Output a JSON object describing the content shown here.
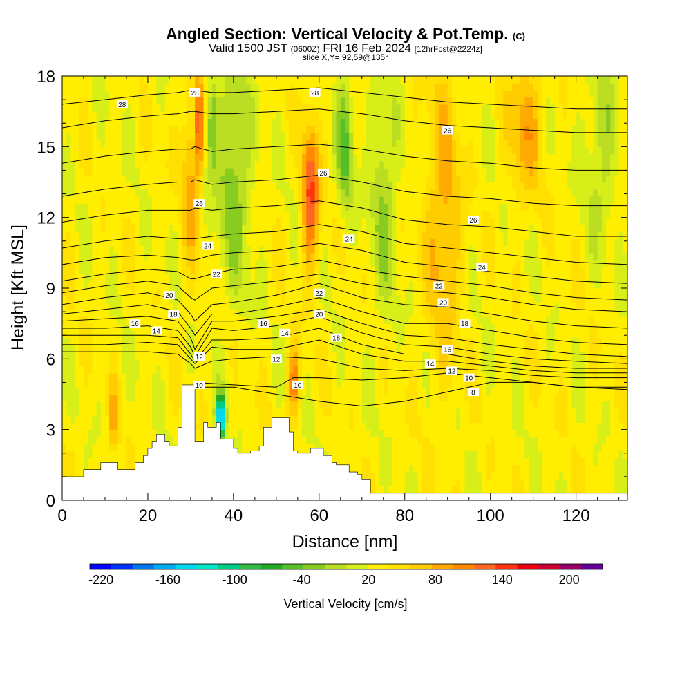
{
  "header": {
    "title": "Angled Section: Vertical Velocity & Pot.Temp.",
    "title_suffix": "(C)",
    "valid_prefix": "Valid 1500 JST",
    "valid_utc": "(0600Z)",
    "valid_date": "FRI 16 Feb 2024",
    "forecast_info": "[12hrFcst@2224z]",
    "slice_info": "slice X,Y= 92,59@135°"
  },
  "chart_data": {
    "type": "heatmap",
    "xlabel": "Distance [nm]",
    "ylabel": "Height [Kft MSL]",
    "xlim": [
      0,
      132
    ],
    "ylim": [
      0,
      18
    ],
    "xticks": [
      0,
      20,
      40,
      60,
      80,
      100,
      120
    ],
    "yticks": [
      0,
      3,
      6,
      9,
      12,
      15,
      18
    ],
    "colorbar": {
      "label": "Vertical Velocity [cm/s]",
      "min": -230,
      "max": 230,
      "tick_labels": [
        -220,
        -160,
        -100,
        -40,
        20,
        80,
        140,
        200
      ],
      "colors": [
        "#0000ff",
        "#0033ff",
        "#0077ee",
        "#00aaf0",
        "#00d8ee",
        "#00e6c8",
        "#00cc88",
        "#33bb44",
        "#22aa22",
        "#55c026",
        "#88cc22",
        "#bbdd22",
        "#d8ee18",
        "#ffee00",
        "#ffe000",
        "#ffcc00",
        "#ffaa00",
        "#ff8800",
        "#ff6622",
        "#ff3311",
        "#ee0011",
        "#cc0033",
        "#990066",
        "#660099"
      ]
    },
    "velocity_field": [
      {
        "x": 12,
        "z": 3.5,
        "v": 60,
        "spread_x": 1,
        "spread_z": 1.5
      },
      {
        "x": 30,
        "z": 14,
        "v": 60,
        "spread_x": 2,
        "spread_z": 4
      },
      {
        "x": 32,
        "z": 16,
        "v": 140,
        "spread_x": 0.6,
        "spread_z": 2
      },
      {
        "x": 35,
        "z": 16,
        "v": -60,
        "spread_x": 1.2,
        "spread_z": 2
      },
      {
        "x": 37,
        "z": 3.5,
        "v": -200,
        "spread_x": 1,
        "spread_z": 1
      },
      {
        "x": 40,
        "z": 14,
        "v": -60,
        "spread_x": 4,
        "spread_z": 5
      },
      {
        "x": 54,
        "z": 5,
        "v": 80,
        "spread_x": 1.5,
        "spread_z": 1.5
      },
      {
        "x": 58,
        "z": 13,
        "v": 110,
        "spread_x": 2,
        "spread_z": 3
      },
      {
        "x": 66,
        "z": 15,
        "v": -70,
        "spread_x": 2,
        "spread_z": 3
      },
      {
        "x": 75,
        "z": 13,
        "v": -50,
        "spread_x": 3,
        "spread_z": 5
      },
      {
        "x": 89,
        "z": 12,
        "v": 60,
        "spread_x": 4,
        "spread_z": 6
      },
      {
        "x": 108,
        "z": 16,
        "v": 60,
        "spread_x": 4,
        "spread_z": 3
      },
      {
        "x": 126,
        "z": 15,
        "v": -40,
        "spread_x": 4,
        "spread_z": 4
      }
    ],
    "terrain": {
      "x": [
        0,
        4,
        5,
        8,
        9,
        12,
        13,
        16,
        17,
        19,
        20,
        21,
        22,
        24,
        25,
        27,
        28,
        29,
        30,
        31,
        33,
        34,
        36,
        37,
        40,
        41,
        43,
        44,
        46,
        47,
        49,
        50,
        53,
        54,
        55,
        57,
        58,
        60,
        61,
        63,
        64,
        66,
        67,
        69,
        70,
        72,
        80,
        100,
        132
      ],
      "z": [
        1.0,
        1.0,
        1.3,
        1.3,
        1.6,
        1.6,
        1.3,
        1.3,
        1.6,
        1.9,
        2.2,
        2.5,
        2.8,
        2.5,
        2.3,
        3.1,
        4.9,
        4.9,
        4.9,
        2.5,
        3.3,
        3.1,
        3.3,
        2.6,
        2.2,
        2.0,
        2.0,
        2.1,
        2.3,
        3.1,
        3.5,
        3.5,
        2.9,
        2.1,
        2.0,
        2.0,
        2.2,
        2.2,
        1.9,
        1.6,
        1.5,
        1.5,
        1.2,
        1.1,
        0.9,
        0.3,
        0.3,
        0.3,
        0.3
      ]
    },
    "isentropes": [
      {
        "label": "8",
        "x": [
          30,
          40,
          50,
          60,
          70,
          80,
          90,
          100,
          110,
          120,
          132
        ],
        "z": [
          4.8,
          4.8,
          4.5,
          4.2,
          4.0,
          4.2,
          4.6,
          5.0,
          5.0,
          4.8,
          4.7
        ]
      },
      {
        "label": "10",
        "x": [
          31,
          40,
          50,
          54,
          60,
          70,
          80,
          90,
          100,
          110,
          120,
          132
        ],
        "z": [
          5.0,
          4.9,
          4.8,
          5.2,
          5.2,
          5.1,
          5.2,
          5.4,
          5.2,
          5.0,
          4.8,
          4.8
        ]
      },
      {
        "label": "12",
        "x": [
          0,
          10,
          20,
          27,
          30,
          31,
          35,
          40,
          50,
          60,
          70,
          80,
          90,
          100,
          110,
          120,
          132
        ],
        "z": [
          6.3,
          6.3,
          6.3,
          6.2,
          5.8,
          5.6,
          5.9,
          6.0,
          6.1,
          6.0,
          5.6,
          5.5,
          5.6,
          5.5,
          5.3,
          5.2,
          5.2
        ]
      },
      {
        "label": "14",
        "x": [
          0,
          10,
          20,
          27,
          30,
          31,
          35,
          40,
          50,
          60,
          70,
          80,
          90,
          100,
          110,
          120,
          132
        ],
        "z": [
          6.6,
          6.6,
          6.7,
          6.6,
          6.0,
          5.8,
          6.5,
          6.4,
          6.4,
          6.8,
          6.2,
          5.9,
          5.9,
          5.7,
          5.5,
          5.4,
          5.4
        ]
      },
      {
        "label": "",
        "x": [
          0,
          10,
          20,
          27,
          30,
          31,
          35,
          40,
          50,
          60,
          70,
          80,
          90,
          100,
          110,
          120,
          132
        ],
        "z": [
          7.0,
          7.0,
          7.0,
          6.9,
          6.2,
          5.9,
          6.8,
          6.8,
          6.9,
          7.3,
          6.6,
          6.2,
          6.2,
          5.9,
          5.7,
          5.6,
          5.6
        ]
      },
      {
        "label": "16",
        "x": [
          0,
          10,
          20,
          27,
          30,
          31,
          35,
          40,
          50,
          60,
          70,
          80,
          90,
          100,
          110,
          120,
          132
        ],
        "z": [
          7.3,
          7.3,
          7.4,
          7.2,
          6.5,
          6.1,
          7.3,
          7.2,
          7.4,
          7.8,
          7.1,
          6.6,
          6.5,
          6.2,
          6.0,
          5.9,
          5.8
        ]
      },
      {
        "label": "",
        "x": [
          0,
          10,
          20,
          27,
          30,
          31,
          35,
          40,
          50,
          60,
          70,
          80,
          90,
          100,
          110,
          120,
          132
        ],
        "z": [
          7.6,
          7.7,
          7.8,
          7.6,
          6.9,
          6.4,
          7.6,
          7.6,
          7.8,
          8.1,
          7.5,
          7.0,
          6.9,
          6.6,
          6.4,
          6.2,
          6.1
        ]
      },
      {
        "label": "18",
        "x": [
          0,
          10,
          20,
          27,
          30,
          31,
          35,
          40,
          50,
          60,
          70,
          80,
          90,
          100,
          110,
          120,
          132
        ],
        "z": [
          7.9,
          8.1,
          8.3,
          8.0,
          7.3,
          7.0,
          7.9,
          7.9,
          8.2,
          8.6,
          8.0,
          7.5,
          7.5,
          7.2,
          6.9,
          6.7,
          6.6
        ]
      },
      {
        "label": "20",
        "x": [
          0,
          10,
          20,
          27,
          30,
          31,
          35,
          40,
          50,
          60,
          70,
          80,
          90,
          100,
          110,
          120,
          132
        ],
        "z": [
          8.3,
          8.6,
          8.8,
          8.5,
          7.9,
          7.6,
          8.3,
          8.4,
          8.7,
          9.2,
          8.6,
          8.3,
          8.2,
          7.9,
          7.6,
          7.4,
          7.3
        ]
      },
      {
        "label": "",
        "x": [
          0,
          10,
          20,
          27,
          30,
          31,
          35,
          40,
          50,
          60,
          70,
          80,
          90,
          100,
          110,
          120,
          132
        ],
        "z": [
          8.8,
          9.1,
          9.3,
          9.1,
          8.6,
          8.5,
          9.0,
          9.1,
          9.3,
          9.6,
          9.2,
          8.9,
          8.8,
          8.6,
          8.3,
          8.1,
          8.0
        ]
      },
      {
        "label": "22",
        "x": [
          0,
          10,
          20,
          27,
          30,
          31,
          35,
          40,
          50,
          60,
          70,
          80,
          90,
          100,
          110,
          120,
          132
        ],
        "z": [
          9.3,
          9.6,
          9.8,
          9.7,
          9.4,
          9.4,
          9.6,
          9.8,
          9.9,
          10.2,
          9.8,
          9.5,
          9.3,
          9.1,
          8.8,
          8.6,
          8.5
        ]
      },
      {
        "label": "24",
        "x": [
          0,
          10,
          20,
          27,
          30,
          31,
          35,
          40,
          50,
          60,
          70,
          80,
          90,
          100,
          110,
          120,
          132
        ],
        "z": [
          10.0,
          10.3,
          10.4,
          10.3,
          10.2,
          10.2,
          10.4,
          10.5,
          10.6,
          10.9,
          10.6,
          10.1,
          9.9,
          9.7,
          9.5,
          9.3,
          9.2
        ]
      },
      {
        "label": "",
        "x": [
          0,
          10,
          20,
          27,
          30,
          31,
          35,
          40,
          50,
          60,
          70,
          80,
          90,
          100,
          110,
          120,
          132
        ],
        "z": [
          10.7,
          11.0,
          11.2,
          11.1,
          11.1,
          11.1,
          11.2,
          11.3,
          11.4,
          11.7,
          11.4,
          10.9,
          10.7,
          10.5,
          10.3,
          10.1,
          10.0
        ]
      },
      {
        "label": "26",
        "x": [
          0,
          10,
          20,
          27,
          30,
          31,
          35,
          40,
          50,
          60,
          70,
          80,
          90,
          100,
          110,
          120,
          132
        ],
        "z": [
          11.8,
          12.1,
          12.3,
          12.3,
          12.3,
          12.4,
          12.3,
          12.4,
          12.5,
          12.7,
          12.4,
          11.9,
          11.7,
          11.6,
          11.4,
          11.2,
          11.2
        ]
      },
      {
        "label": "",
        "x": [
          0,
          10,
          20,
          27,
          30,
          31,
          35,
          40,
          50,
          60,
          70,
          80,
          90,
          100,
          110,
          120,
          132
        ],
        "z": [
          12.9,
          13.2,
          13.4,
          13.5,
          13.5,
          13.6,
          13.4,
          13.5,
          13.6,
          13.8,
          13.5,
          13.1,
          12.9,
          12.8,
          12.6,
          12.5,
          12.5
        ]
      },
      {
        "label": "26",
        "x": [
          0,
          10,
          20,
          27,
          30,
          31,
          35,
          40,
          50,
          60,
          70,
          80,
          90,
          100,
          110,
          120,
          132
        ],
        "z": [
          14.3,
          14.6,
          14.8,
          14.9,
          14.9,
          15.0,
          14.8,
          14.9,
          15.0,
          15.1,
          14.9,
          14.6,
          14.4,
          14.3,
          14.1,
          14.0,
          14.0
        ]
      },
      {
        "label": "",
        "x": [
          0,
          10,
          20,
          27,
          30,
          31,
          35,
          40,
          50,
          60,
          70,
          80,
          90,
          100,
          110,
          120,
          132
        ],
        "z": [
          15.8,
          16.1,
          16.3,
          16.4,
          16.5,
          16.5,
          16.4,
          16.4,
          16.5,
          16.6,
          16.4,
          16.1,
          15.9,
          15.8,
          15.7,
          15.6,
          15.6
        ]
      },
      {
        "label": "28",
        "x": [
          0,
          10,
          20,
          27,
          30,
          31,
          35,
          40,
          50,
          60,
          70,
          80,
          90,
          100,
          110,
          120,
          132
        ],
        "z": [
          16.8,
          17.0,
          17.2,
          17.3,
          17.4,
          17.4,
          17.3,
          17.3,
          17.4,
          17.5,
          17.3,
          17.1,
          16.9,
          16.8,
          16.7,
          16.6,
          16.6
        ]
      }
    ],
    "contour_labels": [
      {
        "text": "28",
        "x": 14,
        "z": 16.8
      },
      {
        "text": "28",
        "x": 31,
        "z": 17.3
      },
      {
        "text": "28",
        "x": 59,
        "z": 17.3
      },
      {
        "text": "26",
        "x": 90,
        "z": 15.7
      },
      {
        "text": "26",
        "x": 61,
        "z": 13.9
      },
      {
        "text": "26",
        "x": 32,
        "z": 12.6
      },
      {
        "text": "26",
        "x": 96,
        "z": 11.9
      },
      {
        "text": "24",
        "x": 34,
        "z": 10.8
      },
      {
        "text": "24",
        "x": 67,
        "z": 11.1
      },
      {
        "text": "24",
        "x": 98,
        "z": 9.9
      },
      {
        "text": "22",
        "x": 36,
        "z": 9.6
      },
      {
        "text": "22",
        "x": 88,
        "z": 9.1
      },
      {
        "text": "22",
        "x": 60,
        "z": 8.8
      },
      {
        "text": "20",
        "x": 25,
        "z": 8.7
      },
      {
        "text": "20",
        "x": 60,
        "z": 7.9
      },
      {
        "text": "20",
        "x": 89,
        "z": 8.4
      },
      {
        "text": "18",
        "x": 26,
        "z": 7.9
      },
      {
        "text": "18",
        "x": 64,
        "z": 6.9
      },
      {
        "text": "18",
        "x": 94,
        "z": 7.5
      },
      {
        "text": "16",
        "x": 17,
        "z": 7.5
      },
      {
        "text": "16",
        "x": 47,
        "z": 7.5
      },
      {
        "text": "16",
        "x": 90,
        "z": 6.4
      },
      {
        "text": "14",
        "x": 22,
        "z": 7.2
      },
      {
        "text": "14",
        "x": 52,
        "z": 7.1
      },
      {
        "text": "14",
        "x": 86,
        "z": 5.8
      },
      {
        "text": "12",
        "x": 32,
        "z": 6.1
      },
      {
        "text": "12",
        "x": 50,
        "z": 6.0
      },
      {
        "text": "12",
        "x": 91,
        "z": 5.5
      },
      {
        "text": "10",
        "x": 32,
        "z": 4.9
      },
      {
        "text": "10",
        "x": 55,
        "z": 4.9
      },
      {
        "text": "10",
        "x": 95,
        "z": 5.2
      },
      {
        "text": "8",
        "x": 96,
        "z": 4.6
      }
    ]
  }
}
